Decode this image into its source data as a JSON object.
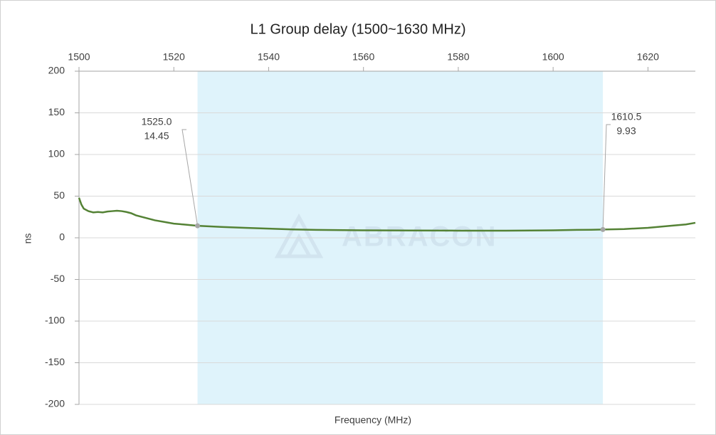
{
  "chart_data": {
    "type": "line",
    "title": "L1 Group delay (1500~1630 MHz)",
    "x_label": "Frequency (MHz)",
    "y_label": "ns",
    "watermark": "ABRACON",
    "xlim": [
      1500,
      1630
    ],
    "xticks": [
      1500,
      1520,
      1540,
      1560,
      1580,
      1600,
      1620
    ],
    "ylim": [
      -200,
      200
    ],
    "yticks": [
      -200,
      -150,
      -100,
      -50,
      0,
      50,
      100,
      150,
      200
    ],
    "grid": true,
    "highlight": [
      1525,
      1610.5
    ],
    "highlight_color": "#dff3fb",
    "series": [
      {
        "name": "Group delay",
        "color": "#548235",
        "x": [
          1500,
          1500.5,
          1501,
          1502,
          1503,
          1504,
          1505,
          1506,
          1507,
          1508,
          1509,
          1510,
          1511,
          1512,
          1514,
          1516,
          1518,
          1520,
          1522,
          1524,
          1525,
          1530,
          1535,
          1540,
          1545,
          1550,
          1560,
          1570,
          1580,
          1590,
          1600,
          1605,
          1608,
          1610.5,
          1615,
          1620,
          1625,
          1628,
          1630
        ],
        "values": [
          48,
          40,
          35,
          32,
          30.5,
          31,
          30.5,
          31.5,
          32,
          32.5,
          32,
          31,
          29.5,
          27,
          24,
          21,
          19,
          17,
          16,
          15,
          14.45,
          13,
          12,
          11,
          10,
          9.5,
          9,
          8.8,
          8.6,
          8.5,
          9,
          9.5,
          9.6,
          9.93,
          10.5,
          12,
          14.5,
          16,
          18
        ]
      }
    ],
    "annotations": [
      {
        "x": 1525,
        "y": 14.45,
        "text": [
          "1525.0",
          "14.45"
        ]
      },
      {
        "x": 1610.5,
        "y": 9.93,
        "text": [
          "1610.5",
          "9.93"
        ]
      }
    ]
  }
}
